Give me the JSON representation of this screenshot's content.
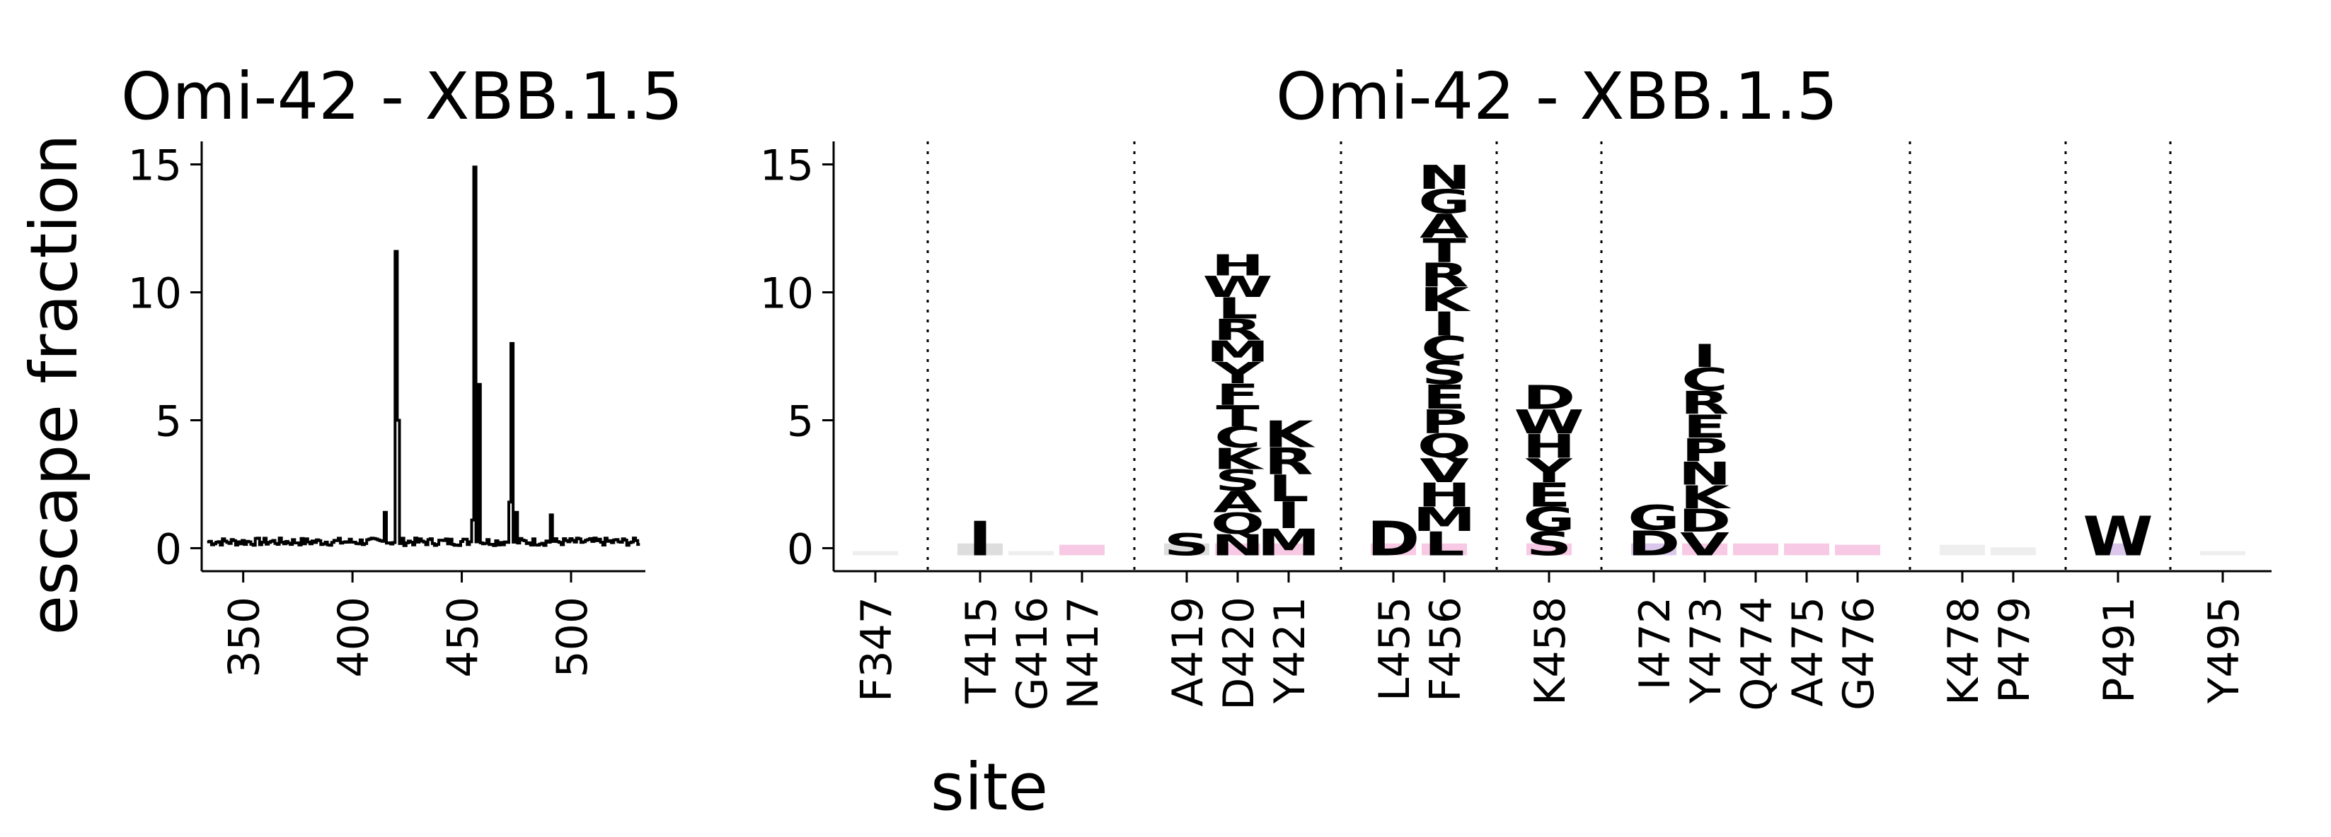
{
  "chart_data": [
    {
      "type": "line",
      "title": "Omi-42 - XBB.1.5",
      "xlabel": "",
      "ylabel": "escape fraction",
      "xlim": [
        331,
        534
      ],
      "ylim": [
        -0.9,
        15.9
      ],
      "xticks": [
        350,
        400,
        450,
        500
      ],
      "yticks": [
        0,
        5,
        10,
        15
      ],
      "baseline": 0.25,
      "peaks": [
        {
          "site": 415,
          "value": 1.4
        },
        {
          "site": 420,
          "value": 11.6
        },
        {
          "site": 421,
          "value": 5.0
        },
        {
          "site": 455,
          "value": 1.1
        },
        {
          "site": 456,
          "value": 14.9
        },
        {
          "site": 458,
          "value": 6.4
        },
        {
          "site": 472,
          "value": 1.8
        },
        {
          "site": 473,
          "value": 8.0
        },
        {
          "site": 475,
          "value": 1.4
        },
        {
          "site": 491,
          "value": 1.3
        }
      ],
      "highlighted_sites": [
        347,
        415,
        416,
        417,
        419,
        420,
        421,
        455,
        456,
        458,
        472,
        473,
        474,
        475,
        476,
        478,
        479,
        491,
        495
      ],
      "highlight_color": "#cc79a7"
    },
    {
      "type": "logo",
      "title": "Omi-42 - XBB.1.5",
      "xlabel": "site",
      "ylabel": "",
      "ylim": [
        -0.9,
        15.9
      ],
      "yticks": [
        0,
        5,
        10,
        15
      ],
      "group_separators_after": [
        "F347",
        "N417",
        "Y421",
        "F456",
        "K458",
        "G476",
        "P479",
        "P491"
      ],
      "sites": [
        {
          "label": "F347",
          "letters": [],
          "color": "#bbbbbb",
          "height": 0.05
        },
        {
          "label": "T415",
          "letters": [
            "I"
          ],
          "color": "#777777",
          "height": 1.1
        },
        {
          "label": "G416",
          "letters": [],
          "color": "#bbbbbb",
          "height": 0
        },
        {
          "label": "N417",
          "letters": [],
          "color": "#e52794",
          "height": 0.3
        },
        {
          "label": "A419",
          "letters": [
            "S"
          ],
          "color": "#777777",
          "height": 0.6
        },
        {
          "label": "D420",
          "letters": [
            "H",
            "W",
            "L",
            "R",
            "M",
            "Y",
            "F",
            "T",
            "C",
            "K",
            "S",
            "A",
            "Q",
            "N"
          ],
          "color": "#e52794",
          "height": 11.5
        },
        {
          "label": "Y421",
          "letters": [
            "K",
            "R",
            "L",
            "I",
            "M"
          ],
          "color": "#e52794",
          "height": 5.0
        },
        {
          "label": "L455",
          "letters": [
            "D"
          ],
          "color": "#e52794",
          "height": 1.1
        },
        {
          "label": "F456",
          "letters": [
            "N",
            "G",
            "A",
            "T",
            "R",
            "K",
            "I",
            "C",
            "S",
            "E",
            "P",
            "Q",
            "V",
            "H",
            "M",
            "L"
          ],
          "color": "#e52794",
          "height": 15.0
        },
        {
          "label": "K458",
          "letters": [
            "D",
            "W",
            "H",
            "Y",
            "E",
            "G",
            "S"
          ],
          "color": "#e52794",
          "height": 6.4
        },
        {
          "label": "I472",
          "letters": [
            "G",
            "D"
          ],
          "color": "#6a1fb0",
          "height": 1.7
        },
        {
          "label": "Y473",
          "letters": [
            "I",
            "C",
            "R",
            "E",
            "P",
            "N",
            "K",
            "D",
            "V"
          ],
          "color": "#e52794",
          "height": 8.0
        },
        {
          "label": "Q474",
          "letters": [],
          "color": "#e52794",
          "height": 0.7
        },
        {
          "label": "A475",
          "letters": [],
          "color": "#e52794",
          "height": 1.1
        },
        {
          "label": "G476",
          "letters": [],
          "color": "#e52794",
          "height": 0.3
        },
        {
          "label": "K478",
          "letters": [],
          "color": "#bbbbbb",
          "height": 0.3
        },
        {
          "label": "P479",
          "letters": [],
          "color": "#bbbbbb",
          "height": 0.2
        },
        {
          "label": "P491",
          "letters": [
            "W"
          ],
          "color": "#6a1fb0",
          "height": 1.3
        },
        {
          "label": "Y495",
          "letters": [],
          "color": "#bbbbbb",
          "height": 0.05
        }
      ]
    }
  ]
}
